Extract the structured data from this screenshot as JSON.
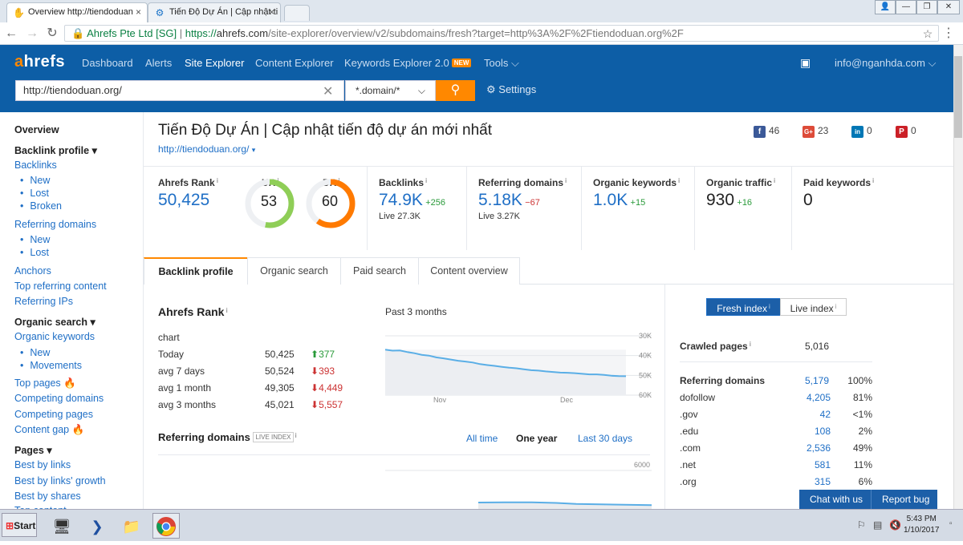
{
  "browser": {
    "tabs": [
      {
        "title": "Overview http://tiendoduan"
      },
      {
        "title": "Tiến Độ Dự Án | Cập nhật ti"
      }
    ],
    "secure_label": "Ahrefs Pte Ltd [SG]",
    "url_scheme": "https://",
    "url_host": "ahrefs.com",
    "url_path": "/site-explorer/overview/v2/subdomains/fresh?target=http%3A%2F%2Ftiendoduan.org%2F"
  },
  "header": {
    "logo_a": "a",
    "logo_rest": "hrefs",
    "nav": [
      "Dashboard",
      "Alerts",
      "Site Explorer",
      "Content Explorer",
      "Keywords Explorer 2.0",
      "Tools"
    ],
    "new_badge": "NEW",
    "account": "info@nganhda.com",
    "search_value": "http://tiendoduan.org/",
    "mode": "*.domain/*",
    "settings": "Settings"
  },
  "sidebar": {
    "overview": "Overview",
    "backlink_profile": "Backlink profile",
    "backlinks": "Backlinks",
    "bl_new": "New",
    "bl_lost": "Lost",
    "bl_broken": "Broken",
    "referring_domains": "Referring domains",
    "rd_new": "New",
    "rd_lost": "Lost",
    "anchors": "Anchors",
    "top_referring": "Top referring content",
    "referring_ips": "Referring IPs",
    "organic_search": "Organic search",
    "organic_keywords": "Organic keywords",
    "ok_new": "New",
    "ok_movements": "Movements",
    "top_pages": "Top pages",
    "competing_domains": "Competing domains",
    "competing_pages": "Competing pages",
    "content_gap": "Content gap",
    "pages": "Pages",
    "best_by_links": "Best by links",
    "best_by_links_growth": "Best by links' growth",
    "best_by_shares": "Best by shares",
    "top_content": "Top content"
  },
  "page": {
    "title": "Tiến Độ Dự Án | Cập nhật tiến độ dự án mới nhất",
    "url": "http://tiendoduan.org/",
    "social": {
      "facebook": "46",
      "gplus": "23",
      "linkedin": "0",
      "pinterest": "0"
    }
  },
  "metrics": {
    "ahrefs_rank_label": "Ahrefs Rank",
    "ahrefs_rank": "50,425",
    "ur_label": "UR",
    "ur": "53",
    "ur_value": 53,
    "dr_label": "DR",
    "dr": "60",
    "dr_value": 60,
    "backlinks_label": "Backlinks",
    "backlinks": "74.9K",
    "backlinks_delta": "+256",
    "backlinks_live": "Live 27.3K",
    "refdomains_label": "Referring domains",
    "refdomains": "5.18K",
    "refdomains_delta": "−67",
    "refdomains_live": "Live 3.27K",
    "organic_kw_label": "Organic keywords",
    "organic_kw": "1.0K",
    "organic_kw_delta": "+15",
    "organic_traffic_label": "Organic traffic",
    "organic_traffic": "930",
    "organic_traffic_delta": "+16",
    "paid_kw_label": "Paid keywords",
    "paid_kw": "0"
  },
  "tabs": [
    "Backlink profile",
    "Organic search",
    "Paid search",
    "Content overview"
  ],
  "rank_section": {
    "title": "Ahrefs Rank",
    "chart_word": "chart",
    "rows": [
      {
        "label": "Today",
        "value": "50,425",
        "delta": "377",
        "dir": "up"
      },
      {
        "label": "avg 7 days",
        "value": "50,524",
        "delta": "393",
        "dir": "down"
      },
      {
        "label": "avg 1 month",
        "value": "49,305",
        "delta": "4,449",
        "dir": "down"
      },
      {
        "label": "avg 3 months",
        "value": "45,021",
        "delta": "5,557",
        "dir": "down"
      }
    ],
    "chart_period": "Past 3 months"
  },
  "chart_data": [
    {
      "type": "line",
      "title": "Past 3 months",
      "x_ticks": [
        "Nov",
        "Dec"
      ],
      "y_ticks": [
        "30K",
        "40K",
        "50K",
        "60K"
      ],
      "ylim": [
        30000,
        60000
      ],
      "y_inverted": true,
      "series": [
        {
          "values": [
            37000,
            37500,
            37400,
            38200,
            38800,
            39600,
            40000,
            40900,
            41400,
            42000,
            42600,
            43000,
            43500,
            44300,
            44800,
            45200,
            45700,
            46100,
            46400,
            46900,
            47400,
            47600,
            48000,
            48300,
            48600,
            48700,
            48900,
            49200,
            49500,
            49500,
            49800,
            50200,
            50400,
            50425
          ]
        }
      ]
    },
    {
      "type": "area",
      "y_ticks": [
        "6000"
      ],
      "series": [
        {
          "values": [
            3600,
            3620,
            3610,
            3570,
            3500
          ]
        }
      ]
    }
  ],
  "refdomains_section": {
    "title": "Referring domains",
    "badge": "LIVE INDEX",
    "ranges": [
      "All time",
      "One year",
      "Last 30 days"
    ]
  },
  "right_panel": {
    "fresh": "Fresh index",
    "live": "Live index",
    "crawled_label": "Crawled pages",
    "crawled": "5,016",
    "rd_label": "Referring domains",
    "rd_value": "5,179",
    "rd_pct": "100%",
    "rows": [
      {
        "label": "dofollow",
        "value": "4,205",
        "pct": "81%"
      },
      {
        "label": ".gov",
        "value": "42",
        "pct": "<1%"
      },
      {
        "label": ".edu",
        "value": "108",
        "pct": "2%"
      },
      {
        "label": ".com",
        "value": "2,536",
        "pct": "49%"
      },
      {
        "label": ".net",
        "value": "581",
        "pct": "11%"
      },
      {
        "label": ".org",
        "value": "315",
        "pct": "6%"
      }
    ]
  },
  "chat": {
    "chat": "Chat with us",
    "report": "Report bug"
  },
  "taskbar": {
    "start": "Start",
    "time": "5:43 PM",
    "date": "1/10/2017"
  }
}
